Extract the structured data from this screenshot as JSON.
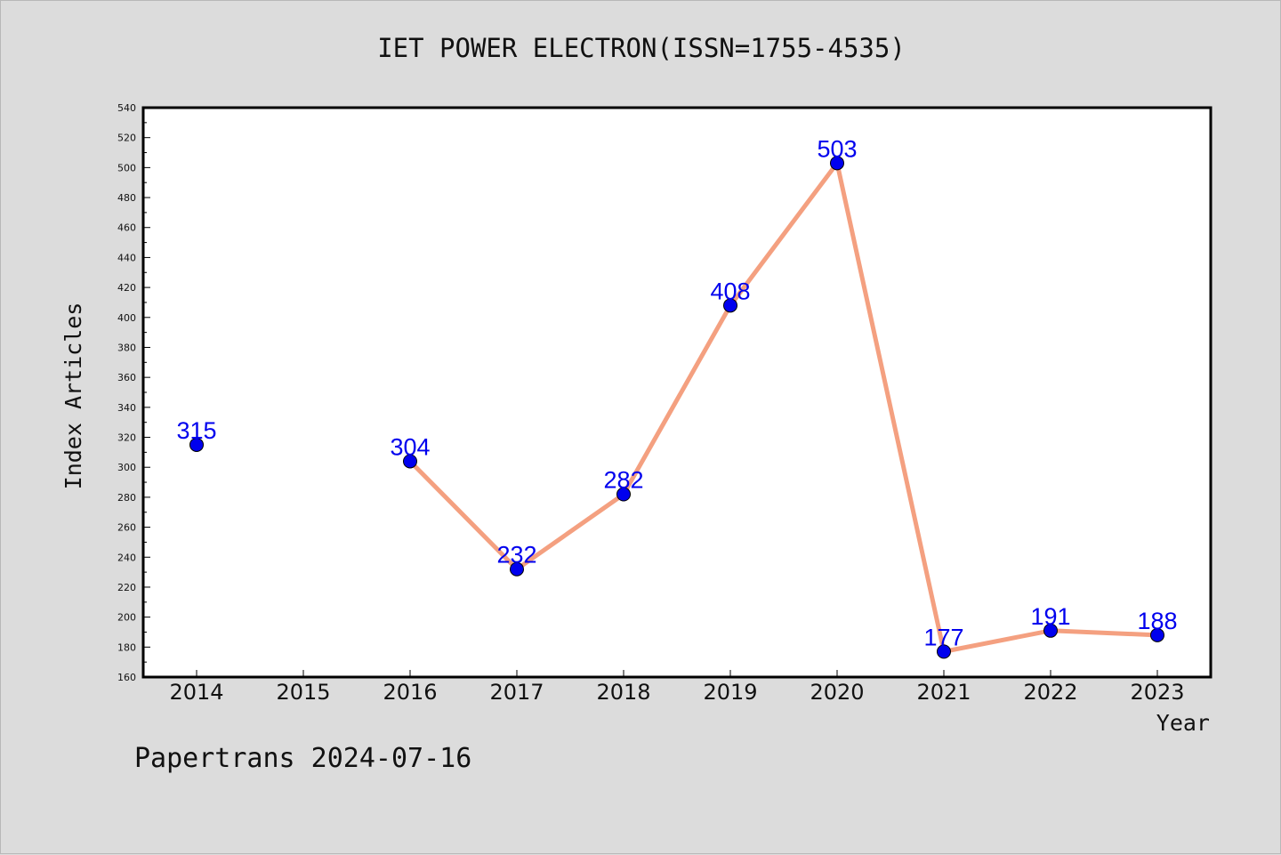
{
  "chart_data": {
    "type": "line",
    "title": "IET POWER ELECTRON(ISSN=1755-4535)",
    "xlabel": "Year",
    "ylabel": "Index Articles",
    "categories": [
      "2014",
      "2015",
      "2016",
      "2017",
      "2018",
      "2019",
      "2020",
      "2021",
      "2022",
      "2023"
    ],
    "series": [
      {
        "values": [
          315,
          null,
          304,
          232,
          282,
          408,
          503,
          177,
          191,
          188
        ],
        "data_labels": [
          "315",
          "",
          "304",
          "232",
          "282",
          "408",
          "503",
          "177",
          "191",
          "188"
        ]
      }
    ],
    "ylim": [
      160,
      540
    ],
    "yticks": [
      "160",
      "180",
      "200",
      "220",
      "240",
      "260",
      "280",
      "300",
      "320",
      "340",
      "360",
      "380",
      "400",
      "420",
      "440",
      "460",
      "480",
      "500",
      "520",
      "540"
    ],
    "grid": false,
    "colors": {
      "line": "#f4a080",
      "marker": "#0000ee",
      "label": "#0000ee",
      "background": "#dcdcdc",
      "plot_background": "#ffffff"
    }
  },
  "footer": "Papertrans 2024-07-16"
}
